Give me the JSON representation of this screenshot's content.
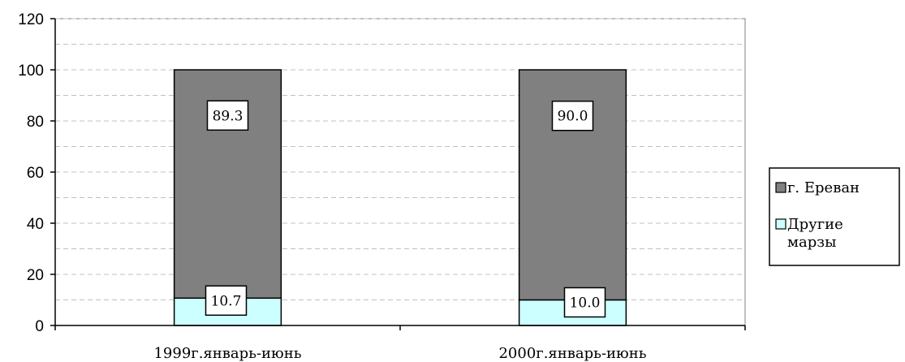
{
  "chart_data": {
    "type": "bar",
    "stacked": true,
    "categories": [
      "1999г.январь-июнь",
      "2000г.январь-июнь"
    ],
    "series": [
      {
        "name": "Другие марзы",
        "values": [
          10.7,
          10.0
        ],
        "color": "#ccffff"
      },
      {
        "name": "г. Ереван",
        "values": [
          89.3,
          90.0
        ],
        "color": "#808080"
      }
    ],
    "legend": [
      {
        "lines": [
          "г. Ереван"
        ],
        "color": "#808080"
      },
      {
        "lines": [
          "Другие",
          "марзы"
        ],
        "color": "#ccffff"
      }
    ],
    "ylim": [
      0,
      120
    ],
    "yticks": [
      0,
      20,
      40,
      60,
      80,
      100,
      120
    ],
    "grid": true,
    "legend_position": "right",
    "data_labels": true,
    "title": "",
    "xlabel": "",
    "ylabel": ""
  }
}
